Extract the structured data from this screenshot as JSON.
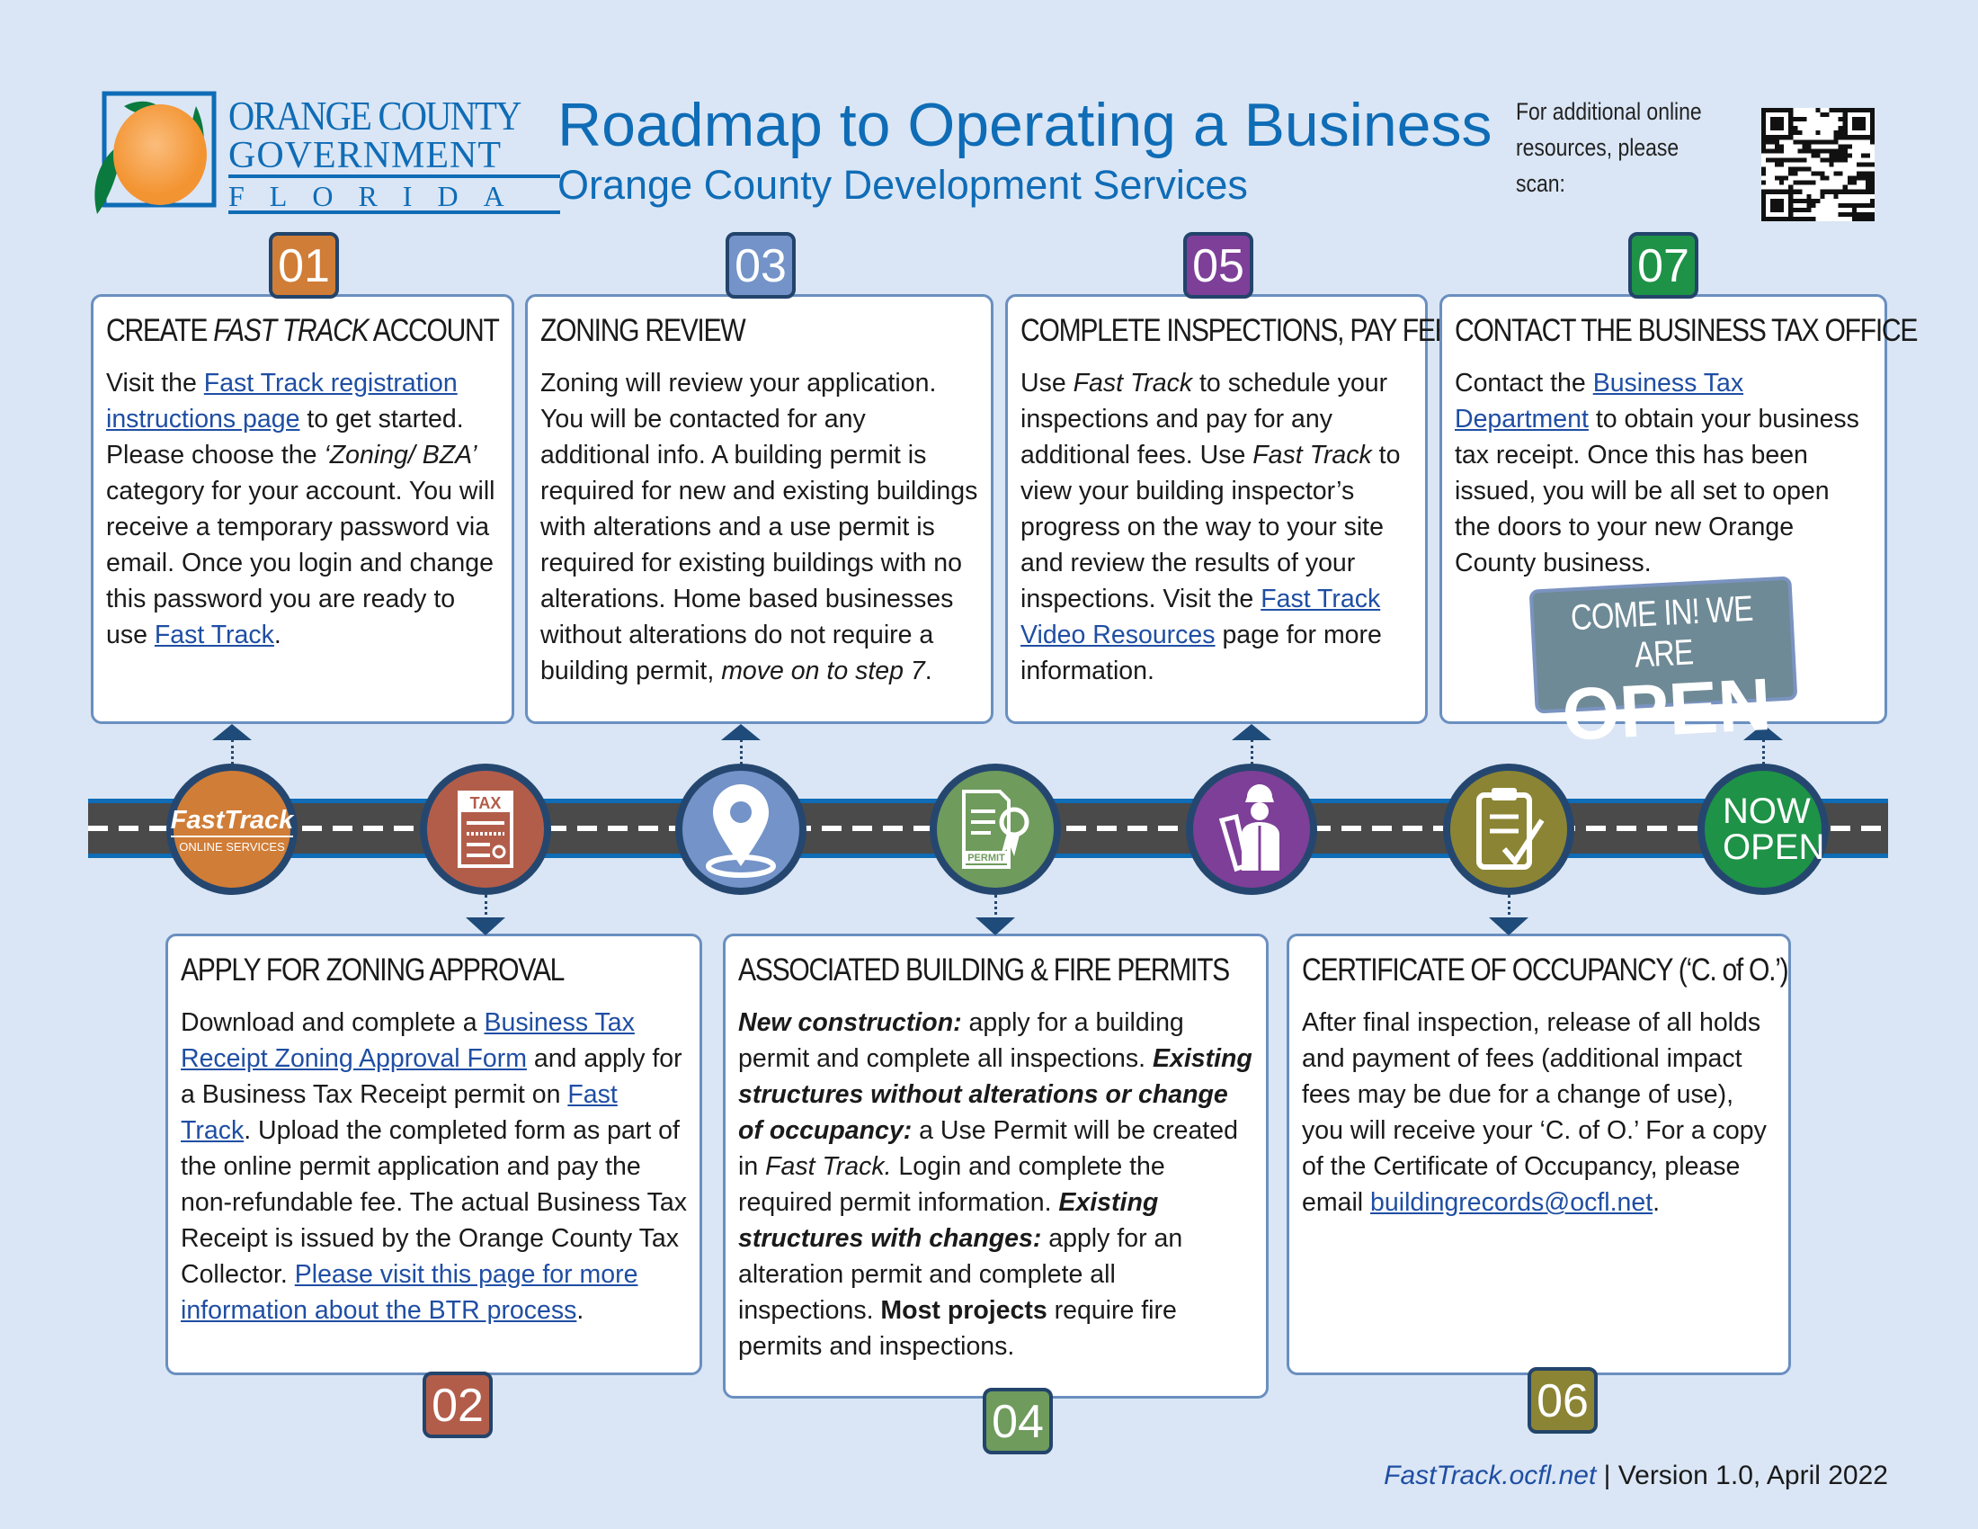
{
  "logo": {
    "line1": "ORANGE COUNTY",
    "line2": "GOVERNMENT",
    "line3": "FLORIDA"
  },
  "header": {
    "title": "Roadmap to Operating a Business",
    "subtitle": "Orange County Development Services",
    "qr_text": "For additional online resources, please scan:"
  },
  "colors": {
    "background": "#dae6f5",
    "title": "#0f6cb6",
    "box_border": "#6a8fc0",
    "step1": "#d07d37",
    "step2": "#b25d4a",
    "step3": "#7393c9",
    "step4": "#6f9b5d",
    "step5": "#7d3f98",
    "step6": "#8b8434",
    "step7": "#1e9247"
  },
  "steps": [
    {
      "num": "01",
      "title": "CREATE FAST TRACK ACCOUNT",
      "icon": "fasttrack-logo-icon",
      "icon_text": "FastTrack",
      "icon_sub": "ONLINE SERVICES",
      "body": [
        {
          "t": "Visit the "
        },
        {
          "t": "Fast Track registration instructions page",
          "s": "link"
        },
        {
          "t": " to get started. Please choose the "
        },
        {
          "t": "‘Zoning/ BZA’",
          "s": "i"
        },
        {
          "t": " category for your account. You will receive a temporary password via email. Once you login and change this password you are ready to use "
        },
        {
          "t": "Fast Track",
          "s": "link"
        },
        {
          "t": "."
        }
      ]
    },
    {
      "num": "02",
      "title": "APPLY FOR ZONING APPROVAL",
      "icon": "tax-form-icon",
      "icon_text": "TAX",
      "body": [
        {
          "t": "Download and complete a "
        },
        {
          "t": "Business Tax Receipt Zoning Approval Form",
          "s": "link"
        },
        {
          "t": " and apply for a Business Tax Receipt permit on "
        },
        {
          "t": "Fast Track",
          "s": "link"
        },
        {
          "t": ". Upload the completed form as part of the online permit application and pay the non-refundable fee. The actual Business Tax Receipt is issued by the Orange County Tax Collector. "
        },
        {
          "t": "Please visit this page for more information about the BTR process",
          "s": "link"
        },
        {
          "t": "."
        }
      ]
    },
    {
      "num": "03",
      "title": "ZONING REVIEW",
      "icon": "location-pin-icon",
      "body": [
        {
          "t": "Zoning will review your application. You will be contacted for any additional info. A building permit is required for new and existing buildings with alterations and a use permit is required for existing buildings with no alterations. Home based businesses without alterations do not require a building permit, "
        },
        {
          "t": "move on to step 7",
          "s": "i"
        },
        {
          "t": "."
        }
      ]
    },
    {
      "num": "04",
      "title": "ASSOCIATED BUILDING & FIRE PERMITS",
      "icon": "permit-certificate-icon",
      "icon_text": "PERMIT",
      "body": [
        {
          "t": "New construction:",
          "s": "bi"
        },
        {
          "t": " apply for a building permit and complete all inspections. "
        },
        {
          "t": "Existing structures without alterations or change of occupancy:",
          "s": "bi"
        },
        {
          "t": " a Use Permit will be created in "
        },
        {
          "t": "Fast Track.",
          "s": "i"
        },
        {
          "t": " Login and complete the required permit information. "
        },
        {
          "t": "Existing structures with changes:",
          "s": "bi"
        },
        {
          "t": " apply for an alteration permit and complete all inspections. "
        },
        {
          "t": "Most projects",
          "s": "b"
        },
        {
          "t": " require fire permits and inspections."
        }
      ]
    },
    {
      "num": "05",
      "title": "COMPLETE INSPECTIONS, PAY FEES",
      "icon": "inspector-icon",
      "body": [
        {
          "t": "Use "
        },
        {
          "t": "Fast Track",
          "s": "i"
        },
        {
          "t": " to schedule your inspections and pay for any additional fees. Use "
        },
        {
          "t": "Fast Track",
          "s": "i"
        },
        {
          "t": " to view your building inspector’s progress on the way to your site and review the results of your inspections. Visit the "
        },
        {
          "t": "Fast Track Video Resources",
          "s": "link"
        },
        {
          "t": " page for more information."
        }
      ]
    },
    {
      "num": "06",
      "title": "CERTIFICATE OF OCCUPANCY (‘C. of O.’)",
      "icon": "clipboard-check-icon",
      "body": [
        {
          "t": "After final inspection, release of all holds and payment of fees (additional impact fees may be due for a change of use), you will receive your ‘C. of O.’ For a copy of the Certificate of Occupancy, please email "
        },
        {
          "t": "buildingrecords@ocfl.net",
          "s": "link"
        },
        {
          "t": "."
        }
      ]
    },
    {
      "num": "07",
      "title": "CONTACT THE BUSINESS TAX OFFICE",
      "icon": "now-open-icon",
      "icon_text": "NOW OPEN",
      "body": [
        {
          "t": "Contact the "
        },
        {
          "t": "Business Tax Department",
          "s": "link"
        },
        {
          "t": " to obtain your business tax receipt. Once this has been issued, you will be all set to open the doors to your new Orange County business."
        }
      ]
    }
  ],
  "open_sign": {
    "line1": "COME IN! WE ARE",
    "line2": "OPEN"
  },
  "footer": {
    "link": "FastTrack.ocfl.net",
    "separator": " | ",
    "version": "Version 1.0, April 2022"
  }
}
